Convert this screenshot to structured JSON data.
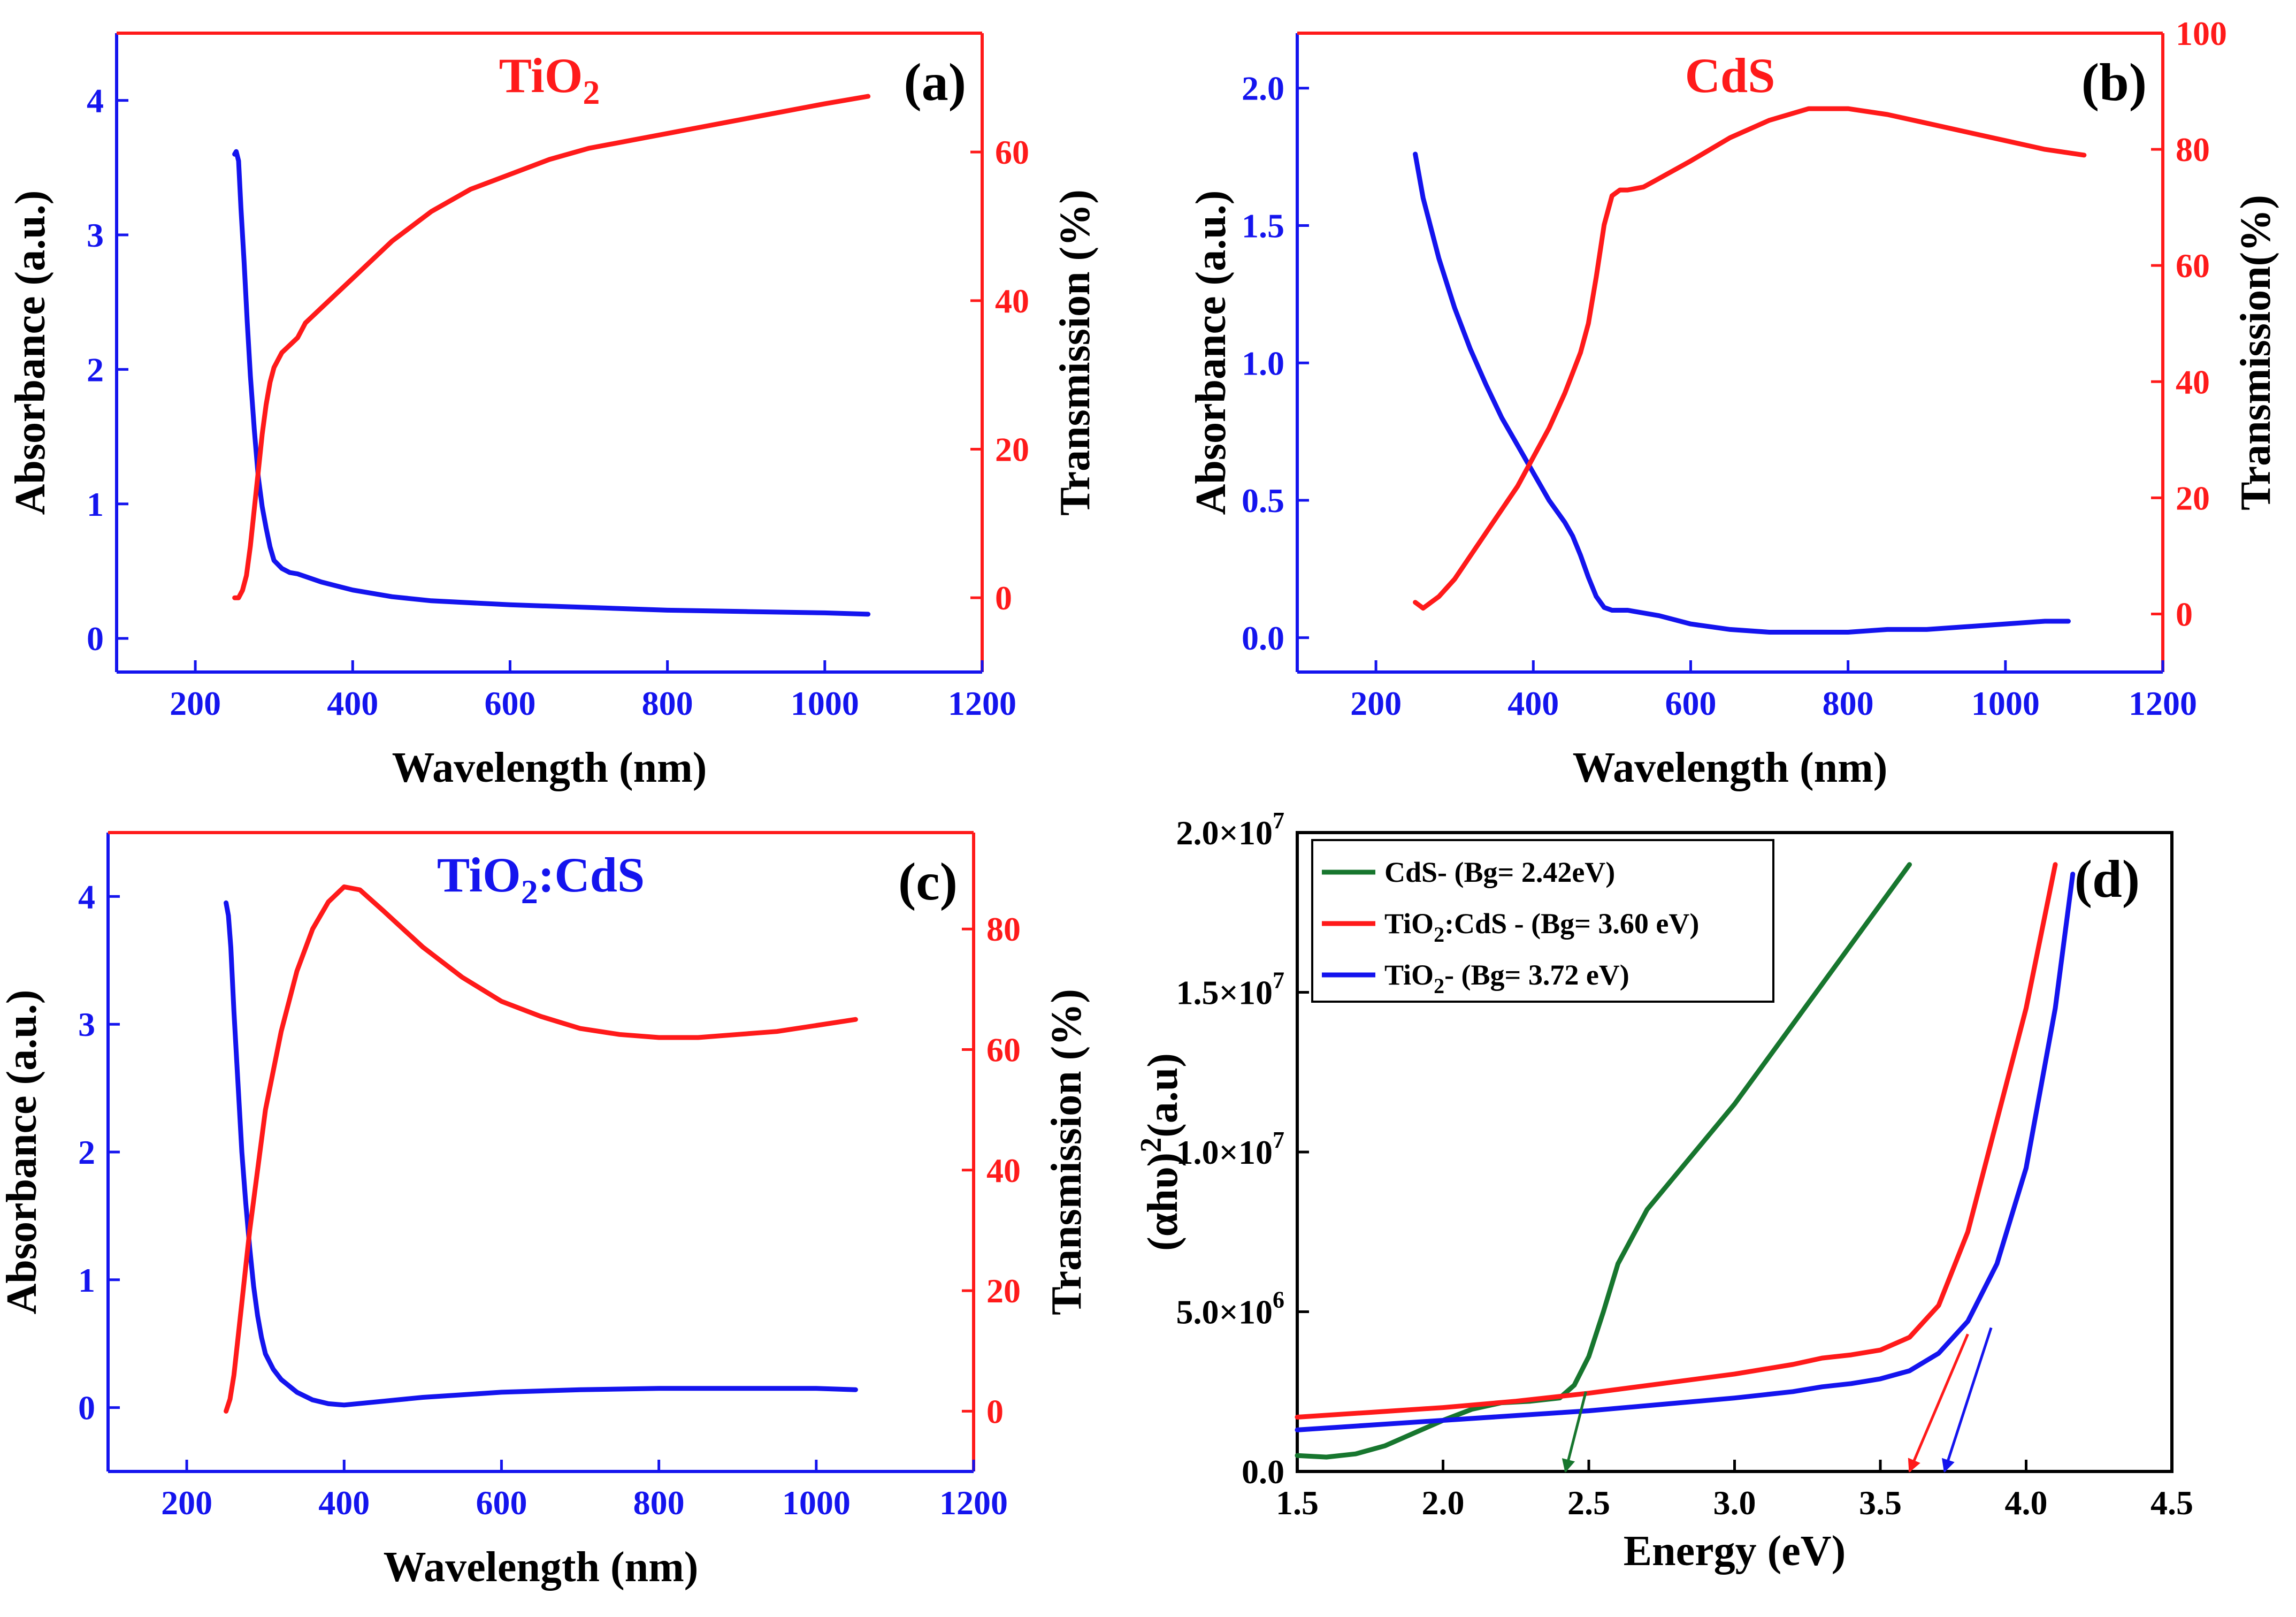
{
  "colors": {
    "absorbance": "#1414ee",
    "transmission": "#ff1a1a",
    "cds": "#17762e",
    "tio2_cds": "#ff1a1a",
    "tio2": "#1414ee",
    "axis": "#000000"
  },
  "chart_data": [
    {
      "id": "a",
      "panel_label": "(a)",
      "title": "TiO2",
      "title_parts": {
        "base": "TiO",
        "sub": "2",
        "tail": ""
      },
      "title_color": "#ff1a1a",
      "type": "line",
      "xlabel": "Wavelength (nm)",
      "ylabel": "Absorbance (a.u.)",
      "y2label": "Transmission (%)",
      "xlim": [
        100,
        1200
      ],
      "ylim": [
        -0.25,
        4.5
      ],
      "y2lim": [
        -10,
        76
      ],
      "xticks": [
        "200",
        "400",
        "600",
        "800",
        "1000",
        "1200"
      ],
      "yticks": [
        "0",
        "1",
        "2",
        "3",
        "4"
      ],
      "y2ticks": [
        "0",
        "20",
        "40",
        "60"
      ],
      "series": [
        {
          "name": "Absorbance",
          "axis": "left",
          "x": [
            250,
            252,
            255,
            258,
            262,
            266,
            270,
            275,
            280,
            285,
            290,
            295,
            300,
            310,
            320,
            330,
            340,
            360,
            400,
            450,
            500,
            600,
            700,
            800,
            900,
            1000,
            1055
          ],
          "y": [
            3.6,
            3.62,
            3.55,
            3.2,
            2.8,
            2.35,
            1.95,
            1.55,
            1.2,
            0.98,
            0.82,
            0.68,
            0.58,
            0.52,
            0.49,
            0.48,
            0.46,
            0.42,
            0.36,
            0.31,
            0.28,
            0.25,
            0.23,
            0.21,
            0.2,
            0.19,
            0.18
          ]
        },
        {
          "name": "Transmission",
          "axis": "right",
          "x": [
            250,
            255,
            260,
            265,
            270,
            275,
            280,
            285,
            290,
            295,
            300,
            310,
            320,
            330,
            340,
            360,
            380,
            400,
            450,
            500,
            550,
            600,
            650,
            700,
            800,
            900,
            1000,
            1055
          ],
          "y": [
            0,
            0,
            1,
            3,
            7,
            12,
            17,
            22,
            26,
            29,
            31,
            33,
            34,
            35,
            37,
            39,
            41,
            43,
            48,
            52,
            55,
            57,
            59,
            60.5,
            62.5,
            64.5,
            66.5,
            67.5
          ]
        }
      ]
    },
    {
      "id": "b",
      "panel_label": "(b)",
      "title": "CdS",
      "title_parts": {
        "base": "CdS",
        "sub": "",
        "tail": ""
      },
      "title_color": "#ff1a1a",
      "type": "line",
      "xlabel": "Wavelength (nm)",
      "ylabel": "Absorbance (a.u.)",
      "y2label": "Transmission(%)",
      "xlim": [
        100,
        1200
      ],
      "ylim": [
        -0.125,
        2.2
      ],
      "y2lim": [
        -10,
        100
      ],
      "xticks": [
        "200",
        "400",
        "600",
        "800",
        "1000",
        "1200"
      ],
      "yticks": [
        "0.0",
        "0.5",
        "1.0",
        "1.5",
        "2.0"
      ],
      "y2ticks": [
        "0",
        "20",
        "40",
        "60",
        "80",
        "100"
      ],
      "series": [
        {
          "name": "Absorbance",
          "axis": "left",
          "x": [
            250,
            260,
            280,
            300,
            320,
            340,
            360,
            380,
            400,
            420,
            440,
            450,
            460,
            470,
            480,
            490,
            500,
            520,
            560,
            600,
            650,
            700,
            750,
            800,
            850,
            900,
            950,
            1000,
            1050,
            1080
          ],
          "y": [
            1.76,
            1.6,
            1.38,
            1.2,
            1.05,
            0.92,
            0.8,
            0.7,
            0.6,
            0.5,
            0.42,
            0.37,
            0.3,
            0.22,
            0.15,
            0.11,
            0.1,
            0.1,
            0.08,
            0.05,
            0.03,
            0.02,
            0.02,
            0.02,
            0.03,
            0.03,
            0.04,
            0.05,
            0.06,
            0.06
          ]
        },
        {
          "name": "Transmission",
          "axis": "right",
          "x": [
            250,
            255,
            260,
            265,
            270,
            280,
            300,
            320,
            340,
            360,
            380,
            400,
            420,
            440,
            460,
            470,
            480,
            490,
            500,
            510,
            520,
            540,
            560,
            600,
            650,
            700,
            750,
            800,
            850,
            900,
            950,
            1000,
            1050,
            1100
          ],
          "y": [
            2,
            1.5,
            1,
            1.5,
            2,
            3,
            6,
            10,
            14,
            18,
            22,
            27,
            32,
            38,
            45,
            50,
            58,
            67,
            72,
            73,
            73,
            73.5,
            75,
            78,
            82,
            85,
            87,
            87,
            86,
            84.5,
            83,
            81.5,
            80,
            79
          ]
        }
      ]
    },
    {
      "id": "c",
      "panel_label": "(c)",
      "title": "TiO2:CdS",
      "title_parts": {
        "base": "TiO",
        "sub": "2",
        "tail": ":CdS"
      },
      "title_color": "#1414ee",
      "type": "line",
      "xlabel": "Wavelength (nm)",
      "ylabel": "Absorbance (a.u.)",
      "y2label": "Transmission (%)",
      "xlim": [
        100,
        1200
      ],
      "ylim": [
        -0.5,
        4.5
      ],
      "y2lim": [
        -10,
        96
      ],
      "xticks": [
        "200",
        "400",
        "600",
        "800",
        "1000",
        "1200"
      ],
      "yticks": [
        "0",
        "1",
        "2",
        "3",
        "4"
      ],
      "y2ticks": [
        "0",
        "20",
        "40",
        "60",
        "80"
      ],
      "series": [
        {
          "name": "Absorbance",
          "axis": "left",
          "x": [
            250,
            253,
            256,
            260,
            265,
            270,
            275,
            280,
            285,
            290,
            295,
            300,
            310,
            320,
            340,
            360,
            380,
            400,
            450,
            500,
            600,
            700,
            800,
            900,
            1000,
            1050
          ],
          "y": [
            3.95,
            3.85,
            3.6,
            3.1,
            2.55,
            2.0,
            1.6,
            1.25,
            0.95,
            0.72,
            0.55,
            0.42,
            0.3,
            0.22,
            0.12,
            0.06,
            0.03,
            0.02,
            0.05,
            0.08,
            0.12,
            0.14,
            0.15,
            0.15,
            0.15,
            0.14
          ]
        },
        {
          "name": "Transmission",
          "axis": "right",
          "x": [
            250,
            255,
            260,
            265,
            270,
            275,
            280,
            290,
            300,
            320,
            340,
            360,
            380,
            400,
            420,
            450,
            500,
            550,
            600,
            650,
            700,
            750,
            800,
            850,
            900,
            950,
            1000,
            1050
          ],
          "y": [
            0,
            2,
            6,
            12,
            18,
            24,
            30,
            40,
            50,
            63,
            73,
            80,
            84.5,
            87,
            86.5,
            83,
            77,
            72,
            68,
            65.5,
            63.5,
            62.5,
            62,
            62,
            62.5,
            63,
            64,
            65
          ]
        }
      ]
    },
    {
      "id": "d",
      "panel_label": "(d)",
      "type": "line",
      "xlabel": "Energy (eV)",
      "ylabel": "(αhυ)2(a.u)",
      "ylabel_parts": {
        "base": "(αhυ)",
        "sup": "2",
        "tail": "(a.u)"
      },
      "xlim": [
        1.5,
        4.5
      ],
      "ylim": [
        0,
        20000000
      ],
      "xticks": [
        "1.5",
        "2.0",
        "2.5",
        "3.0",
        "3.5",
        "4.0",
        "4.5"
      ],
      "yticks": [
        {
          "base": "0.0",
          "exp": ""
        },
        {
          "base": "5.0×10",
          "exp": "6"
        },
        {
          "base": "1.0×10",
          "exp": "7"
        },
        {
          "base": "1.5×10",
          "exp": "7"
        },
        {
          "base": "2.0×10",
          "exp": "7"
        }
      ],
      "legend_position": "top-left",
      "legend": [
        {
          "label": "CdS- (Bg= 2.42eV)",
          "parts": {
            "base": "CdS- (Bg= 2.42eV)",
            "sub": "",
            "tail": ""
          }
        },
        {
          "label": "TiO2:CdS - (Bg= 3.60 eV)",
          "parts": {
            "base": "TiO",
            "sub": "2",
            "tail": ":CdS - (Bg= 3.60 eV)"
          }
        },
        {
          "label": "TiO2- (Bg= 3.72 eV)",
          "parts": {
            "base": "TiO",
            "sub": "2",
            "tail": "- (Bg= 3.72 eV)"
          }
        }
      ],
      "series": [
        {
          "name": "CdS",
          "band_gap_eV": 2.42,
          "x": [
            1.5,
            1.6,
            1.7,
            1.8,
            1.9,
            2.0,
            2.1,
            2.2,
            2.3,
            2.4,
            2.45,
            2.5,
            2.55,
            2.6,
            2.7,
            2.8,
            3.0,
            3.2,
            3.4,
            3.6
          ],
          "y": [
            500000,
            450000,
            550000,
            800000,
            1200000,
            1600000,
            1950000,
            2150000,
            2200000,
            2300000,
            2700000,
            3600000,
            5000000,
            6500000,
            8200000,
            9300000,
            11500000,
            14000000,
            16500000,
            19000000
          ]
        },
        {
          "name": "TiO2:CdS",
          "band_gap_eV": 3.6,
          "x": [
            1.5,
            1.75,
            2.0,
            2.25,
            2.5,
            2.75,
            3.0,
            3.2,
            3.3,
            3.4,
            3.5,
            3.6,
            3.7,
            3.8,
            3.9,
            4.0,
            4.1
          ],
          "y": [
            1700000,
            1850000,
            2000000,
            2200000,
            2450000,
            2750000,
            3050000,
            3350000,
            3550000,
            3650000,
            3800000,
            4200000,
            5200000,
            7500000,
            11000000,
            14500000,
            19000000
          ]
        },
        {
          "name": "TiO2",
          "band_gap_eV": 3.72,
          "x": [
            1.5,
            1.75,
            2.0,
            2.25,
            2.5,
            2.75,
            3.0,
            3.2,
            3.3,
            3.4,
            3.5,
            3.6,
            3.7,
            3.8,
            3.9,
            4.0,
            4.1,
            4.16
          ],
          "y": [
            1300000,
            1450000,
            1600000,
            1750000,
            1900000,
            2100000,
            2300000,
            2500000,
            2650000,
            2750000,
            2900000,
            3150000,
            3700000,
            4700000,
            6500000,
            9500000,
            14500000,
            18700000
          ]
        }
      ],
      "arrows": [
        {
          "series": "CdS",
          "from": [
            2.49,
            2500000
          ],
          "to": [
            2.42,
            0
          ]
        },
        {
          "series": "TiO2:CdS",
          "from": [
            3.8,
            4300000
          ],
          "to": [
            3.6,
            0
          ]
        },
        {
          "series": "TiO2",
          "from": [
            3.88,
            4500000
          ],
          "to": [
            3.72,
            0
          ]
        }
      ]
    }
  ]
}
